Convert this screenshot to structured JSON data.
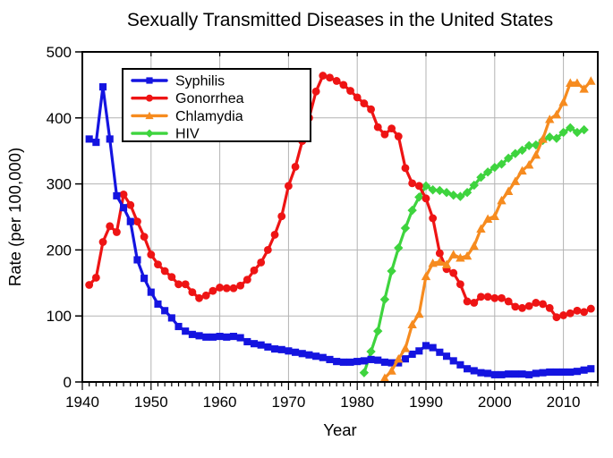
{
  "chart_data": {
    "type": "line",
    "title": "Sexually Transmitted Diseases in the United States",
    "xlabel": "Year",
    "ylabel": "Rate (per 100,000)",
    "xlim": [
      1940,
      2015
    ],
    "ylim": [
      0,
      500
    ],
    "x_major_ticks": [
      1940,
      1950,
      1960,
      1970,
      1980,
      1990,
      2000,
      2010
    ],
    "x_minor_tick_step": 1,
    "y_major_ticks": [
      0,
      100,
      200,
      300,
      400,
      500
    ],
    "grid": true,
    "grid_color": "#b3b3b3",
    "frame_color": "#000000",
    "background_color": "#ffffff",
    "legend": {
      "position": "upper-left",
      "border": true
    },
    "series": [
      {
        "name": "Syphilis",
        "color": "#1414e0",
        "marker": "square",
        "z": 3,
        "points": [
          [
            1941,
            368
          ],
          [
            1942,
            363
          ],
          [
            1943,
            447
          ],
          [
            1944,
            368
          ],
          [
            1945,
            282
          ],
          [
            1946,
            264
          ],
          [
            1947,
            243
          ],
          [
            1948,
            185
          ],
          [
            1949,
            157
          ],
          [
            1950,
            136
          ],
          [
            1951,
            118
          ],
          [
            1952,
            108
          ],
          [
            1953,
            97
          ],
          [
            1954,
            84
          ],
          [
            1955,
            77
          ],
          [
            1956,
            72
          ],
          [
            1957,
            70
          ],
          [
            1958,
            68
          ],
          [
            1959,
            68
          ],
          [
            1960,
            69
          ],
          [
            1961,
            68
          ],
          [
            1962,
            69
          ],
          [
            1963,
            67
          ],
          [
            1964,
            61
          ],
          [
            1965,
            58
          ],
          [
            1966,
            56
          ],
          [
            1967,
            53
          ],
          [
            1968,
            50
          ],
          [
            1969,
            49
          ],
          [
            1970,
            47
          ],
          [
            1971,
            45
          ],
          [
            1972,
            43
          ],
          [
            1973,
            41
          ],
          [
            1974,
            39
          ],
          [
            1975,
            37
          ],
          [
            1976,
            34
          ],
          [
            1977,
            31
          ],
          [
            1978,
            30
          ],
          [
            1979,
            30
          ],
          [
            1980,
            31
          ],
          [
            1981,
            32
          ],
          [
            1982,
            34
          ],
          [
            1983,
            33
          ],
          [
            1984,
            30
          ],
          [
            1985,
            29
          ],
          [
            1986,
            29
          ],
          [
            1987,
            35
          ],
          [
            1988,
            42
          ],
          [
            1989,
            47
          ],
          [
            1990,
            55
          ],
          [
            1991,
            52
          ],
          [
            1992,
            45
          ],
          [
            1993,
            39
          ],
          [
            1994,
            32
          ],
          [
            1995,
            26
          ],
          [
            1996,
            20
          ],
          [
            1997,
            17
          ],
          [
            1998,
            14
          ],
          [
            1999,
            13
          ],
          [
            2000,
            11
          ],
          [
            2001,
            11
          ],
          [
            2002,
            12
          ],
          [
            2003,
            12
          ],
          [
            2004,
            12
          ],
          [
            2005,
            11
          ],
          [
            2006,
            13
          ],
          [
            2007,
            14
          ],
          [
            2008,
            15
          ],
          [
            2009,
            15
          ],
          [
            2010,
            15
          ],
          [
            2011,
            15
          ],
          [
            2012,
            16
          ],
          [
            2013,
            18
          ],
          [
            2014,
            20
          ]
        ]
      },
      {
        "name": "Gonorrhea",
        "color": "#ee1414",
        "marker": "circle",
        "z": 2,
        "points": [
          [
            1941,
            147
          ],
          [
            1942,
            158
          ],
          [
            1943,
            212
          ],
          [
            1944,
            236
          ],
          [
            1945,
            227
          ],
          [
            1946,
            284
          ],
          [
            1947,
            268
          ],
          [
            1948,
            243
          ],
          [
            1949,
            220
          ],
          [
            1950,
            193
          ],
          [
            1951,
            178
          ],
          [
            1952,
            168
          ],
          [
            1953,
            159
          ],
          [
            1954,
            148
          ],
          [
            1955,
            148
          ],
          [
            1956,
            136
          ],
          [
            1957,
            127
          ],
          [
            1958,
            131
          ],
          [
            1959,
            138
          ],
          [
            1960,
            143
          ],
          [
            1961,
            142
          ],
          [
            1962,
            142
          ],
          [
            1963,
            146
          ],
          [
            1964,
            155
          ],
          [
            1965,
            169
          ],
          [
            1966,
            181
          ],
          [
            1967,
            200
          ],
          [
            1968,
            223
          ],
          [
            1969,
            251
          ],
          [
            1970,
            297
          ],
          [
            1971,
            326
          ],
          [
            1972,
            365
          ],
          [
            1973,
            400
          ],
          [
            1974,
            440
          ],
          [
            1975,
            464
          ],
          [
            1976,
            461
          ],
          [
            1977,
            456
          ],
          [
            1978,
            450
          ],
          [
            1979,
            441
          ],
          [
            1980,
            431
          ],
          [
            1981,
            422
          ],
          [
            1982,
            413
          ],
          [
            1983,
            386
          ],
          [
            1984,
            375
          ],
          [
            1985,
            384
          ],
          [
            1986,
            372
          ],
          [
            1987,
            324
          ],
          [
            1988,
            301
          ],
          [
            1989,
            297
          ],
          [
            1990,
            278
          ],
          [
            1991,
            248
          ],
          [
            1992,
            195
          ],
          [
            1993,
            171
          ],
          [
            1994,
            165
          ],
          [
            1995,
            148
          ],
          [
            1996,
            122
          ],
          [
            1997,
            120
          ],
          [
            1998,
            129
          ],
          [
            1999,
            129
          ],
          [
            2000,
            127
          ],
          [
            2001,
            127
          ],
          [
            2002,
            122
          ],
          [
            2003,
            114
          ],
          [
            2004,
            112
          ],
          [
            2005,
            115
          ],
          [
            2006,
            120
          ],
          [
            2007,
            118
          ],
          [
            2008,
            112
          ],
          [
            2009,
            98
          ],
          [
            2010,
            101
          ],
          [
            2011,
            104
          ],
          [
            2012,
            108
          ],
          [
            2013,
            106
          ],
          [
            2014,
            111
          ]
        ]
      },
      {
        "name": "Chlamydia",
        "color": "#f68b1f",
        "marker": "triangle",
        "z": 4,
        "points": [
          [
            1984,
            6
          ],
          [
            1985,
            17
          ],
          [
            1986,
            35
          ],
          [
            1987,
            51
          ],
          [
            1988,
            87
          ],
          [
            1989,
            103
          ],
          [
            1990,
            160
          ],
          [
            1991,
            180
          ],
          [
            1992,
            182
          ],
          [
            1993,
            178
          ],
          [
            1994,
            193
          ],
          [
            1995,
            188
          ],
          [
            1996,
            191
          ],
          [
            1997,
            206
          ],
          [
            1998,
            232
          ],
          [
            1999,
            247
          ],
          [
            2000,
            251
          ],
          [
            2001,
            275
          ],
          [
            2002,
            289
          ],
          [
            2003,
            304
          ],
          [
            2004,
            320
          ],
          [
            2005,
            329
          ],
          [
            2006,
            344
          ],
          [
            2007,
            368
          ],
          [
            2008,
            398
          ],
          [
            2009,
            405
          ],
          [
            2010,
            424
          ],
          [
            2011,
            453
          ],
          [
            2012,
            453
          ],
          [
            2013,
            444
          ],
          [
            2014,
            456
          ]
        ]
      },
      {
        "name": "HIV",
        "color": "#3ed43e",
        "marker": "diamond",
        "z": 1,
        "points": [
          [
            1981,
            14
          ],
          [
            1982,
            46
          ],
          [
            1983,
            77
          ],
          [
            1984,
            125
          ],
          [
            1985,
            168
          ],
          [
            1986,
            203
          ],
          [
            1987,
            233
          ],
          [
            1988,
            260
          ],
          [
            1989,
            280
          ],
          [
            1990,
            297
          ],
          [
            1991,
            291
          ],
          [
            1992,
            290
          ],
          [
            1993,
            287
          ],
          [
            1994,
            283
          ],
          [
            1995,
            281
          ],
          [
            1996,
            287
          ],
          [
            1997,
            298
          ],
          [
            1998,
            310
          ],
          [
            1999,
            318
          ],
          [
            2000,
            325
          ],
          [
            2001,
            330
          ],
          [
            2002,
            339
          ],
          [
            2003,
            346
          ],
          [
            2004,
            351
          ],
          [
            2005,
            358
          ],
          [
            2006,
            359
          ],
          [
            2007,
            366
          ],
          [
            2008,
            371
          ],
          [
            2009,
            369
          ],
          [
            2010,
            378
          ],
          [
            2011,
            385
          ],
          [
            2012,
            378
          ],
          [
            2013,
            382
          ]
        ]
      }
    ]
  }
}
